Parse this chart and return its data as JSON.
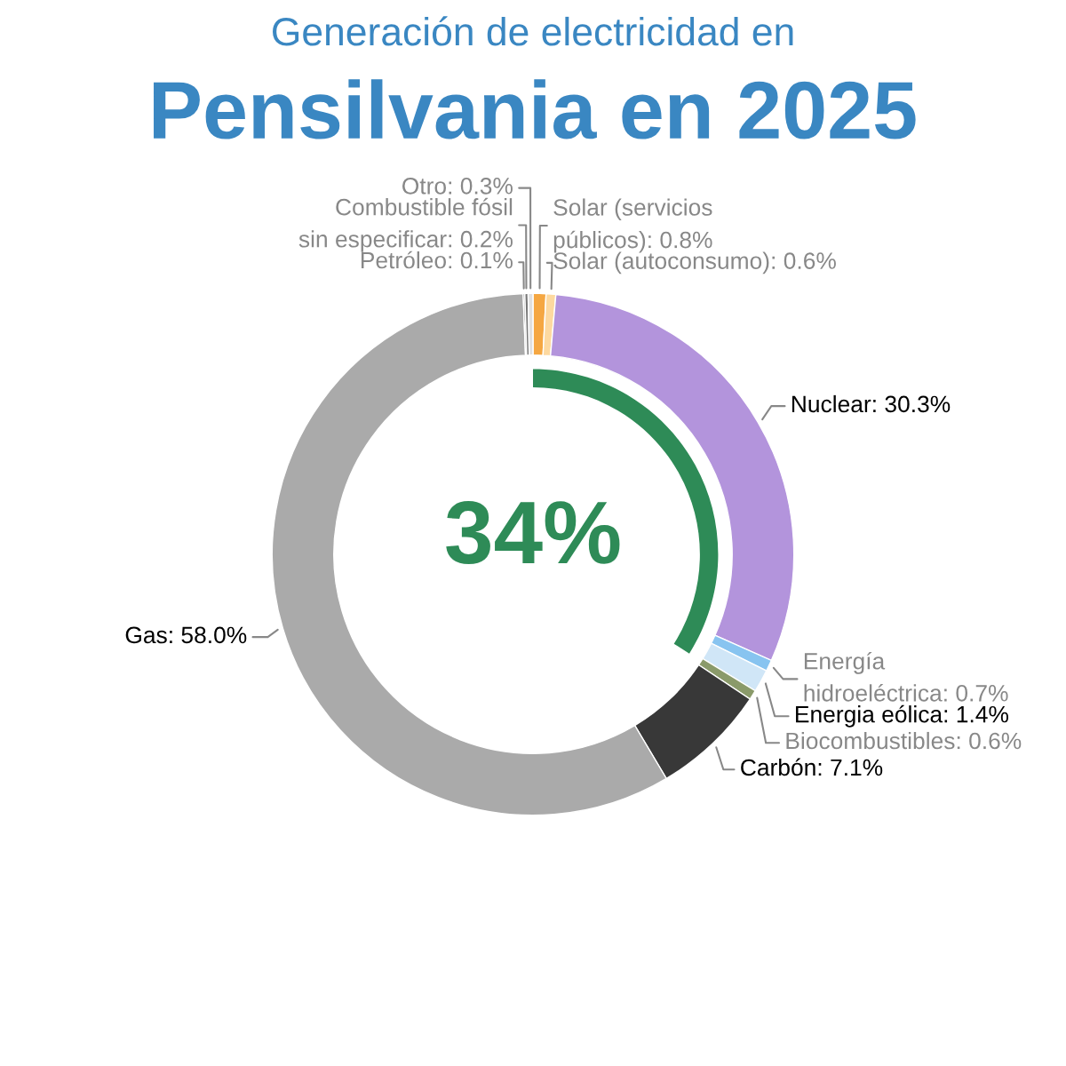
{
  "chart_data": [
    {
      "type": "donut",
      "subtitle": "Generación de electricidad en",
      "title": "Pensilvania en 2025",
      "categories": [
        "Solar (servicios públicos)",
        "Solar (autoconsumo)",
        "Nuclear",
        "Energía hidroeléctrica",
        "Energia eólica",
        "Biocombustibles",
        "Carbón",
        "Gas",
        "Petróleo",
        "Combustible fósil sin especificar",
        "Otro"
      ],
      "values": [
        0.8,
        0.6,
        30.3,
        0.7,
        1.4,
        0.6,
        7.1,
        58.0,
        0.1,
        0.2,
        0.3
      ],
      "value_labels": [
        "0.8%",
        "0.6%",
        "30.3%",
        "0.7%",
        "1.4%",
        "0.6%",
        "7.1%",
        "58.0%",
        "0.1%",
        "0.2%",
        "0.3%"
      ],
      "colors": [
        "#f5a742",
        "#fdd9a0",
        "#b394dc",
        "#88c4f0",
        "#d0e6f7",
        "#8a9a6a",
        "#383838",
        "#aaaaaa",
        "#555555",
        "#777777",
        "#e0e0e0"
      ]
    },
    {
      "type": "other",
      "values": [
        34
      ],
      "colors": [
        "#2e8b57"
      ],
      "value_labels": [
        "34%"
      ]
    }
  ]
}
